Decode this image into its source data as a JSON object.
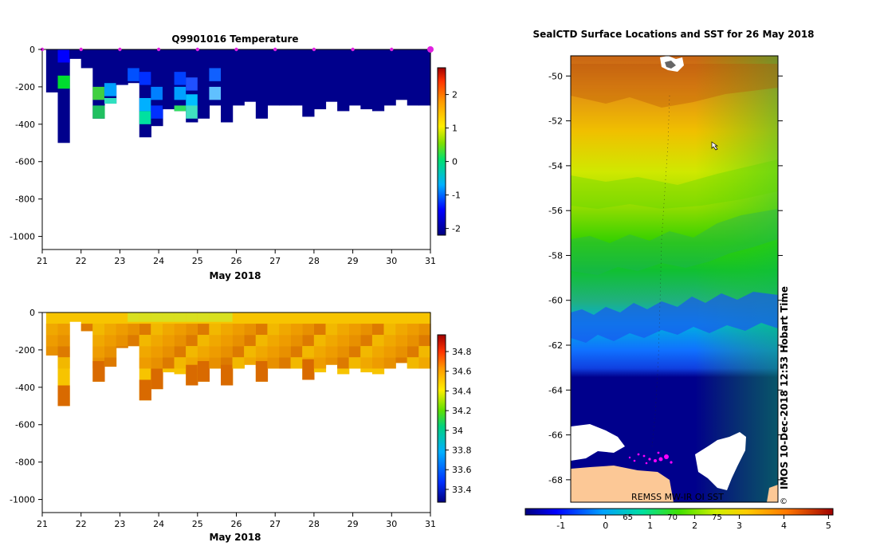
{
  "chart_data": [
    {
      "type": "heatmap",
      "title": "Q9901016  Temperature",
      "xlabel": "May 2018",
      "ylabel": "",
      "x_ticks": [
        "21",
        "22",
        "23",
        "24",
        "25",
        "26",
        "27",
        "28",
        "29",
        "30",
        "31"
      ],
      "y_ticks": [
        "0",
        "-200",
        "-400",
        "-600",
        "-800",
        "-1000"
      ],
      "xlim": [
        21,
        31
      ],
      "ylim": [
        -1070,
        0
      ],
      "colorbar": {
        "min": -2.2,
        "max": 2.8,
        "ticks": [
          "2",
          "1",
          "0",
          "-1",
          "-2"
        ],
        "tick_values": [
          2,
          1,
          0,
          -1,
          -2
        ]
      },
      "profile_times": [
        21.1,
        21.4,
        21.7,
        22.0,
        22.3,
        22.6,
        22.9,
        23.2,
        23.5,
        23.8,
        24.1,
        24.4,
        24.7,
        25.0,
        25.3,
        25.6,
        25.9,
        26.2,
        26.5,
        26.8,
        27.1,
        27.4,
        27.7,
        28.0,
        28.3,
        28.6,
        28.9,
        29.2,
        29.5,
        29.8,
        30.1,
        30.4,
        30.7
      ],
      "profile_depths": [
        -230,
        -500,
        -50,
        -100,
        -370,
        -290,
        -190,
        -180,
        -470,
        -410,
        -320,
        -330,
        -390,
        -370,
        -300,
        -390,
        -300,
        -280,
        -370,
        -300,
        -300,
        -300,
        -360,
        -320,
        -280,
        -330,
        -300,
        -320,
        -330,
        -300,
        -270,
        -300,
        -300
      ],
      "surface_markers": [
        21,
        22,
        23,
        24,
        25,
        26,
        27,
        28,
        29,
        30,
        31
      ]
    },
    {
      "type": "heatmap",
      "title": "",
      "xlabel": "May 2018",
      "ylabel": "",
      "x_ticks": [
        "21",
        "22",
        "23",
        "24",
        "25",
        "26",
        "27",
        "28",
        "29",
        "30",
        "31"
      ],
      "y_ticks": [
        "0",
        "-200",
        "-400",
        "-600",
        "-800",
        "-1000"
      ],
      "xlim": [
        21,
        31
      ],
      "ylim": [
        -1070,
        0
      ],
      "colorbar": {
        "min": 33.27,
        "max": 34.97,
        "ticks": [
          "34.8",
          "34.6",
          "34.4",
          "34.2",
          "34",
          "33.8",
          "33.6",
          "33.4"
        ],
        "tick_values": [
          34.8,
          34.6,
          34.4,
          34.2,
          34.0,
          33.8,
          33.6,
          33.4
        ]
      }
    },
    {
      "type": "heatmap",
      "title": "SealCTD Surface Locations and SST for 26 May 2018",
      "xlabel": "",
      "ylabel": "",
      "y_ticks": [
        "-50",
        "-52",
        "-54",
        "-56",
        "-58",
        "-60",
        "-62",
        "-64",
        "-66",
        "-68"
      ],
      "ylim": [
        -69.0,
        -49.1
      ],
      "colorbar": {
        "min": -1.8,
        "max": 5.1,
        "ticks": [
          "-1",
          "0",
          "1",
          "2",
          "3",
          "4",
          "5"
        ],
        "tick_values": [
          -1,
          0,
          1,
          2,
          3,
          4,
          5
        ],
        "sub_labels": [
          "65",
          "70",
          "75"
        ]
      },
      "source_label": "REMSS MW-IR OI SST",
      "stamp": "IMOS 10-Dec-2018 12:53 Hobart Time",
      "copyright": "©"
    }
  ]
}
